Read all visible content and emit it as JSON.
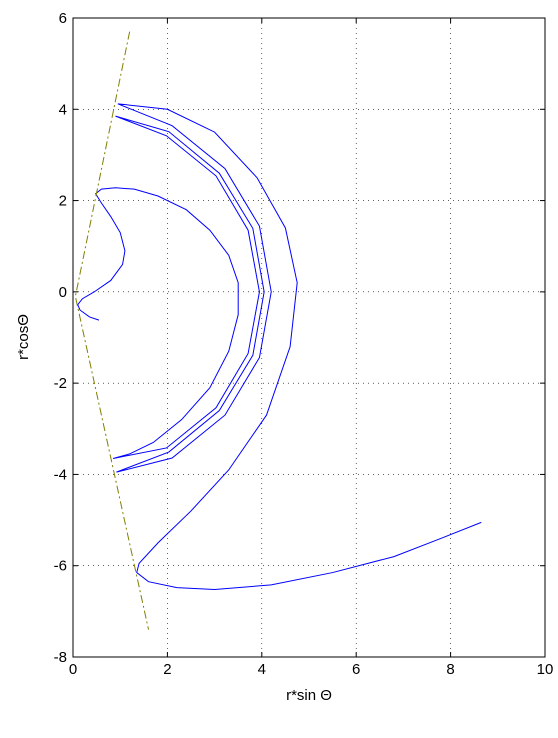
{
  "chart_data": {
    "type": "line",
    "xlabel": "r*sin Θ",
    "ylabel": "r*cosΘ",
    "xlim": [
      0,
      10
    ],
    "ylim": [
      -8,
      6
    ],
    "xticks": [
      0,
      2,
      4,
      6,
      8,
      10
    ],
    "yticks": [
      -8,
      -6,
      -4,
      -2,
      0,
      2,
      4,
      6
    ],
    "grid": true,
    "series": [
      {
        "color": "#0000ff",
        "dash": "solid",
        "x": [
          0.55,
          0.35,
          0.15,
          0.1,
          0.2,
          0.45,
          0.8,
          1.05,
          1.1,
          1.0,
          0.8,
          0.6,
          0.48,
          0.6,
          0.9,
          1.3,
          1.8,
          2.4,
          2.9,
          3.3,
          3.5,
          3.5,
          3.3,
          2.9,
          2.3,
          1.7,
          1.2,
          0.85,
          1.98,
          3.03,
          3.71,
          3.95,
          3.71,
          3.03,
          1.98,
          0.9,
          2.03,
          3.1,
          3.81,
          4.05,
          3.81,
          3.1,
          2.03,
          0.92,
          2.1,
          3.22,
          3.95,
          4.2,
          3.95,
          3.22,
          2.1,
          0.95,
          2,
          3,
          3.9,
          4.5,
          4.75,
          4.6,
          4.1,
          3.3,
          2.5,
          1.8,
          1.4,
          1.35,
          1.6,
          2.2,
          3,
          4.2,
          5.5,
          6.8,
          7.8,
          8.65
        ],
        "y": [
          -0.62,
          -0.55,
          -0.4,
          -0.28,
          -0.15,
          0,
          0.25,
          0.6,
          0.9,
          1.3,
          1.65,
          1.95,
          2.15,
          2.25,
          2.28,
          2.25,
          2.1,
          1.8,
          1.35,
          0.8,
          0.2,
          -0.5,
          -1.3,
          -2.1,
          -2.8,
          -3.3,
          -3.55,
          -3.65,
          -3.42,
          -2.54,
          -1.35,
          0,
          1.35,
          2.54,
          3.42,
          3.85,
          3.51,
          2.6,
          1.39,
          0,
          -1.39,
          -2.6,
          -3.51,
          -3.95,
          -3.64,
          -2.7,
          -1.44,
          0,
          1.44,
          2.7,
          3.64,
          4.12,
          4,
          3.5,
          2.5,
          1.4,
          0.2,
          -1.2,
          -2.7,
          -3.9,
          -4.8,
          -5.5,
          -5.95,
          -6.15,
          -6.35,
          -6.48,
          -6.52,
          -6.42,
          -6.15,
          -5.8,
          -5.4,
          -5.05
        ]
      },
      {
        "color": "#808000",
        "dash": "dashdot",
        "x": [
          1.2,
          0.05,
          1.6
        ],
        "y": [
          5.7,
          -0.1,
          -7.4
        ]
      }
    ]
  }
}
